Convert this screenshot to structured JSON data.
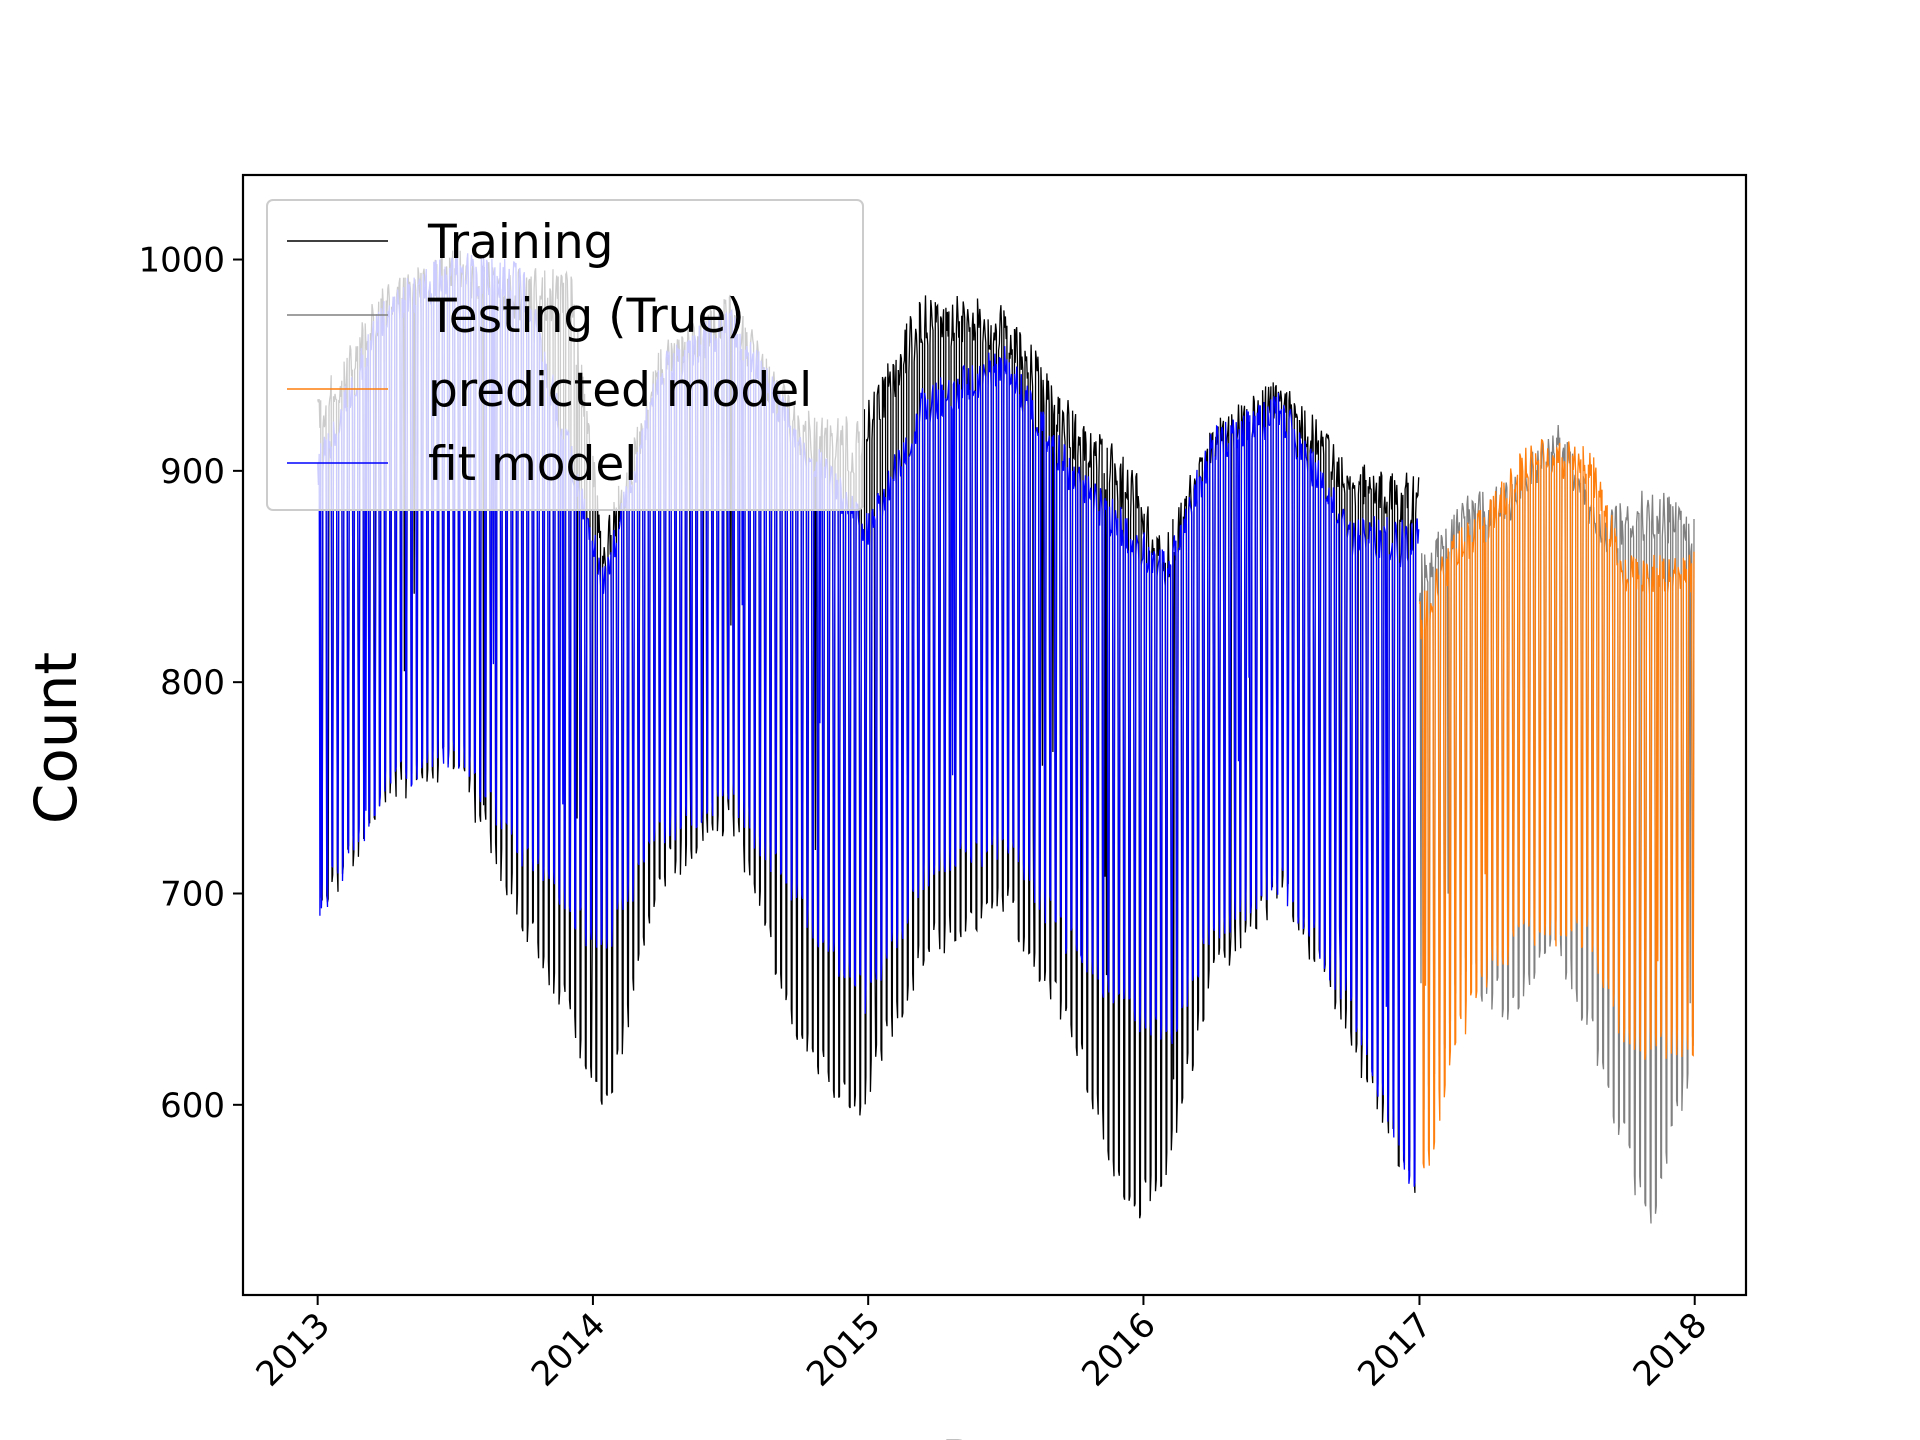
{
  "chart_data": {
    "type": "line",
    "title": "",
    "xlabel": "Date",
    "ylabel": "Count",
    "x_range": [
      "2012-09-24",
      "2018-03-10"
    ],
    "ylim": [
      510,
      1040
    ],
    "x_ticks": [
      "2013",
      "2014",
      "2015",
      "2016",
      "2017",
      "2018"
    ],
    "y_ticks": [
      600,
      700,
      800,
      900,
      1000
    ],
    "grid": false,
    "legend": {
      "position": "top-left",
      "entries": [
        "Training",
        "Testing (True)",
        "predicted model",
        "fit model"
      ]
    },
    "series": [
      {
        "name": "Training",
        "color": "#000000",
        "x_range": [
          "2013-01-01",
          "2016-12-31"
        ],
        "weekly_pattern": "daily counts with lower weekend values",
        "envelope": [
          {
            "date": "2013-01-01",
            "high": 935,
            "low": 680
          },
          {
            "date": "2013-04-01",
            "high": 990,
            "low": 740
          },
          {
            "date": "2013-07-01",
            "high": 1005,
            "low": 755
          },
          {
            "date": "2013-10-01",
            "high": 995,
            "low": 680
          },
          {
            "date": "2013-12-01",
            "high": 1000,
            "low": 635
          },
          {
            "date": "2014-01-15",
            "high": 870,
            "low": 585
          },
          {
            "date": "2014-04-01",
            "high": 960,
            "low": 700
          },
          {
            "date": "2014-07-01",
            "high": 985,
            "low": 730
          },
          {
            "date": "2014-10-01",
            "high": 930,
            "low": 625
          },
          {
            "date": "2014-12-15",
            "high": 925,
            "low": 588
          },
          {
            "date": "2015-03-15",
            "high": 985,
            "low": 665
          },
          {
            "date": "2015-07-01",
            "high": 980,
            "low": 690
          },
          {
            "date": "2015-10-01",
            "high": 930,
            "low": 625
          },
          {
            "date": "2015-12-15",
            "high": 905,
            "low": 540
          },
          {
            "date": "2016-02-01",
            "high": 870,
            "low": 565
          },
          {
            "date": "2016-04-01",
            "high": 925,
            "low": 655
          },
          {
            "date": "2016-07-01",
            "high": 945,
            "low": 695
          },
          {
            "date": "2016-10-01",
            "high": 905,
            "low": 625
          },
          {
            "date": "2016-12-31",
            "high": 900,
            "low": 548
          }
        ]
      },
      {
        "name": "Testing (True)",
        "color": "#808080",
        "x_range": [
          "2017-01-01",
          "2017-12-31"
        ],
        "envelope": [
          {
            "date": "2017-01-01",
            "high": 860,
            "low": 580
          },
          {
            "date": "2017-03-01",
            "high": 890,
            "low": 655
          },
          {
            "date": "2017-05-01",
            "high": 895,
            "low": 638
          },
          {
            "date": "2017-07-01",
            "high": 925,
            "low": 672
          },
          {
            "date": "2017-09-01",
            "high": 880,
            "low": 610
          },
          {
            "date": "2017-11-01",
            "high": 895,
            "low": 533
          },
          {
            "date": "2017-12-31",
            "high": 880,
            "low": 620
          }
        ]
      },
      {
        "name": "predicted model",
        "color": "#ff7f0e",
        "x_range": [
          "2017-01-01",
          "2017-12-31"
        ],
        "envelope": [
          {
            "date": "2017-01-01",
            "high": 840,
            "low": 548
          },
          {
            "date": "2017-02-15",
            "high": 870,
            "low": 620
          },
          {
            "date": "2017-04-01",
            "high": 885,
            "low": 655
          },
          {
            "date": "2017-06-01",
            "high": 918,
            "low": 675
          },
          {
            "date": "2017-08-15",
            "high": 912,
            "low": 672
          },
          {
            "date": "2017-10-01",
            "high": 860,
            "low": 622
          },
          {
            "date": "2017-12-31",
            "high": 862,
            "low": 618
          }
        ]
      },
      {
        "name": "fit model",
        "color": "#0000ff",
        "x_range": [
          "2013-01-01",
          "2016-12-31"
        ],
        "envelope": [
          {
            "date": "2013-01-01",
            "high": 910,
            "low": 685
          },
          {
            "date": "2013-04-01",
            "high": 985,
            "low": 742
          },
          {
            "date": "2013-07-01",
            "high": 1005,
            "low": 760
          },
          {
            "date": "2013-10-01",
            "high": 1000,
            "low": 710
          },
          {
            "date": "2014-01-15",
            "high": 855,
            "low": 665
          },
          {
            "date": "2014-04-01",
            "high": 955,
            "low": 720
          },
          {
            "date": "2014-07-01",
            "high": 980,
            "low": 738
          },
          {
            "date": "2014-10-01",
            "high": 925,
            "low": 688
          },
          {
            "date": "2015-01-01",
            "high": 880,
            "low": 640
          },
          {
            "date": "2015-03-15",
            "high": 940,
            "low": 700
          },
          {
            "date": "2015-07-01",
            "high": 960,
            "low": 715
          },
          {
            "date": "2015-10-01",
            "high": 905,
            "low": 665
          },
          {
            "date": "2016-02-01",
            "high": 862,
            "low": 620
          },
          {
            "date": "2016-04-01",
            "high": 920,
            "low": 675
          },
          {
            "date": "2016-07-01",
            "high": 938,
            "low": 698
          },
          {
            "date": "2016-10-01",
            "high": 878,
            "low": 642
          },
          {
            "date": "2016-12-31",
            "high": 880,
            "low": 548
          }
        ]
      }
    ]
  }
}
